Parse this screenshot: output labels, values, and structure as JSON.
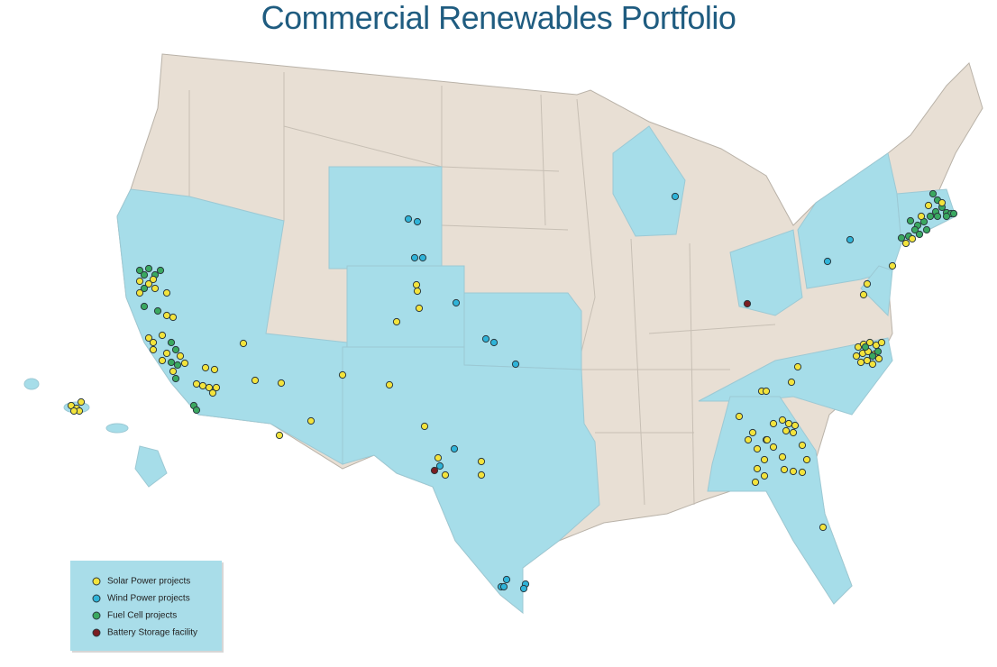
{
  "header": {
    "title": "Commercial Renewables Portfolio"
  },
  "legend": {
    "items": [
      "Solar Power projects",
      "Wind Power projects",
      "Fuel Cell projects",
      "Battery Storage facility"
    ]
  }
}
